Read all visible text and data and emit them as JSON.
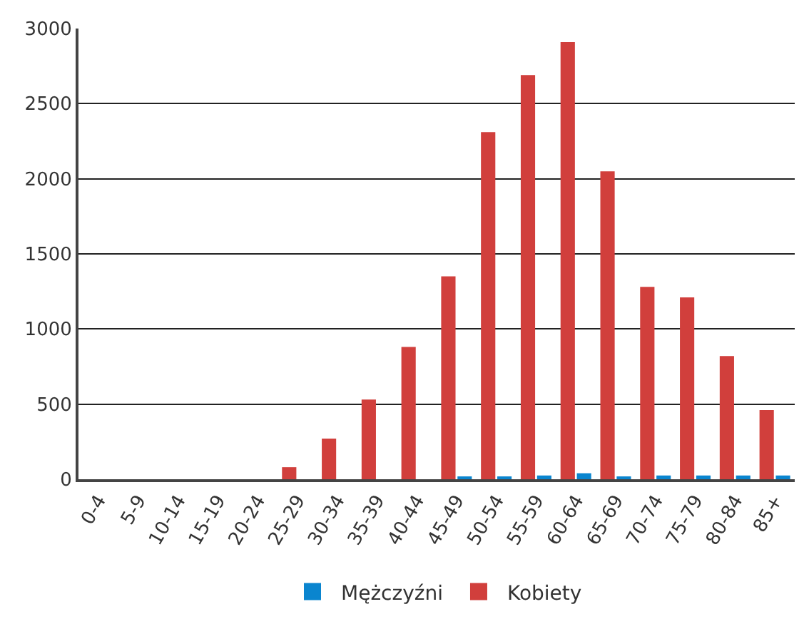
{
  "chart_data": {
    "type": "bar",
    "categories": [
      "0-4",
      "5-9",
      "10-14",
      "15-19",
      "20-24",
      "25-29",
      "30-34",
      "35-39",
      "40-44",
      "45-49",
      "50-54",
      "55-59",
      "60-64",
      "65-69",
      "70-74",
      "75-79",
      "80-84",
      "85+"
    ],
    "series": [
      {
        "name": "Mężczyźni",
        "color": "#0a85cf",
        "values": [
          0,
          0,
          0,
          0,
          0,
          0,
          0,
          0,
          0,
          10,
          10,
          25,
          40,
          10,
          25,
          25,
          25,
          25
        ]
      },
      {
        "name": "Kobiety",
        "color": "#d13f3c",
        "values": [
          0,
          0,
          0,
          0,
          0,
          80,
          270,
          530,
          880,
          1350,
          2310,
          2690,
          2910,
          2050,
          1280,
          1210,
          820,
          460
        ]
      }
    ],
    "ylim": [
      0,
      3000
    ],
    "yticks": [
      0,
      500,
      1000,
      1500,
      2000,
      2500,
      3000
    ],
    "grid": "y",
    "legend": "bottom"
  }
}
